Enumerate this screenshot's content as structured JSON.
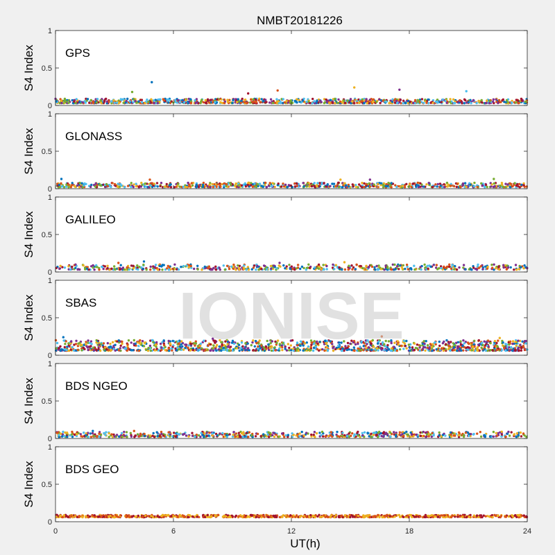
{
  "figure": {
    "title": "NMBT20181226",
    "watermark": "IONISE",
    "background": "#f0f0f0"
  },
  "chart_data": [
    {
      "type": "scatter",
      "label": "GPS",
      "ylabel": "S4 Index",
      "xlabel": "",
      "xlim": [
        0,
        24
      ],
      "ylim": [
        0,
        1
      ],
      "xticks": [
        0,
        6,
        12,
        18,
        24
      ],
      "yticks": [
        0,
        0.5,
        1
      ],
      "baseline": [
        0.03,
        0.09
      ],
      "density": 1.0,
      "spikes": [
        [
          4.9,
          0.31
        ],
        [
          11.3,
          0.2
        ],
        [
          15.2,
          0.24
        ],
        [
          17.5,
          0.21
        ],
        [
          3.9,
          0.18
        ],
        [
          20.9,
          0.19
        ],
        [
          9.8,
          0.16
        ]
      ],
      "colors": [
        "#0072bd",
        "#d95319",
        "#edb120",
        "#7e2f8e",
        "#77ac30",
        "#4dbeee",
        "#a2142f"
      ]
    },
    {
      "type": "scatter",
      "label": "GLONASS",
      "ylabel": "S4 Index",
      "xlabel": "",
      "xlim": [
        0,
        24
      ],
      "ylim": [
        0,
        1
      ],
      "xticks": [
        0,
        6,
        12,
        18,
        24
      ],
      "yticks": [
        0,
        0.5,
        1
      ],
      "baseline": [
        0.02,
        0.08
      ],
      "density": 0.8,
      "spikes": [
        [
          0.3,
          0.13
        ],
        [
          4.8,
          0.12
        ],
        [
          14.5,
          0.12
        ],
        [
          16.0,
          0.12
        ],
        [
          22.3,
          0.13
        ]
      ],
      "colors": [
        "#0072bd",
        "#d95319",
        "#edb120",
        "#7e2f8e",
        "#77ac30",
        "#4dbeee",
        "#a2142f"
      ]
    },
    {
      "type": "scatter",
      "label": "GALILEO",
      "ylabel": "S4 Index",
      "xlabel": "",
      "xlim": [
        0,
        24
      ],
      "ylim": [
        0,
        1
      ],
      "xticks": [
        0,
        6,
        12,
        18,
        24
      ],
      "yticks": [
        0,
        0.5,
        1
      ],
      "baseline": [
        0.03,
        0.1
      ],
      "density": 0.6,
      "spikes": [
        [
          4.5,
          0.14
        ],
        [
          3.2,
          0.12
        ],
        [
          14.7,
          0.13
        ],
        [
          11.4,
          0.12
        ]
      ],
      "colors": [
        "#0072bd",
        "#d95319",
        "#edb120",
        "#7e2f8e",
        "#77ac30",
        "#4dbeee",
        "#a2142f"
      ]
    },
    {
      "type": "scatter",
      "label": "SBAS",
      "ylabel": "S4 Index",
      "xlabel": "",
      "xlim": [
        0,
        24
      ],
      "ylim": [
        0,
        1
      ],
      "xticks": [
        0,
        6,
        12,
        18,
        24
      ],
      "yticks": [
        0,
        0.5,
        1
      ],
      "baseline": [
        0.06,
        0.2
      ],
      "density": 1.4,
      "spikes": [
        [
          0.4,
          0.24
        ],
        [
          16.6,
          0.25
        ],
        [
          22.6,
          0.23
        ],
        [
          8.0,
          0.22
        ]
      ],
      "colors": [
        "#0072bd",
        "#d95319",
        "#edb120",
        "#7e2f8e",
        "#77ac30",
        "#4dbeee",
        "#a2142f"
      ]
    },
    {
      "type": "scatter",
      "label": "BDS NGEO",
      "ylabel": "S4 Index",
      "xlabel": "",
      "xlim": [
        0,
        24
      ],
      "ylim": [
        0,
        1
      ],
      "xticks": [
        0,
        6,
        12,
        18,
        24
      ],
      "yticks": [
        0,
        0.5,
        1
      ],
      "baseline": [
        0.02,
        0.09
      ],
      "density": 0.7,
      "spikes": [
        [
          1.9,
          0.1
        ],
        [
          4.0,
          0.1
        ],
        [
          22.7,
          0.09
        ]
      ],
      "colors": [
        "#0072bd",
        "#d95319",
        "#edb120",
        "#7e2f8e",
        "#77ac30",
        "#4dbeee",
        "#a2142f"
      ]
    },
    {
      "type": "scatter",
      "label": "BDS GEO",
      "ylabel": "S4 Index",
      "xlabel": "UT(h)",
      "xlim": [
        0,
        24
      ],
      "ylim": [
        0,
        1
      ],
      "xticks": [
        0,
        6,
        12,
        18,
        24
      ],
      "yticks": [
        0,
        0.5,
        1
      ],
      "baseline": [
        0.06,
        0.09
      ],
      "density": 0.9,
      "spikes": [],
      "colors": [
        "#d95319",
        "#edb120",
        "#a2142f"
      ]
    }
  ]
}
